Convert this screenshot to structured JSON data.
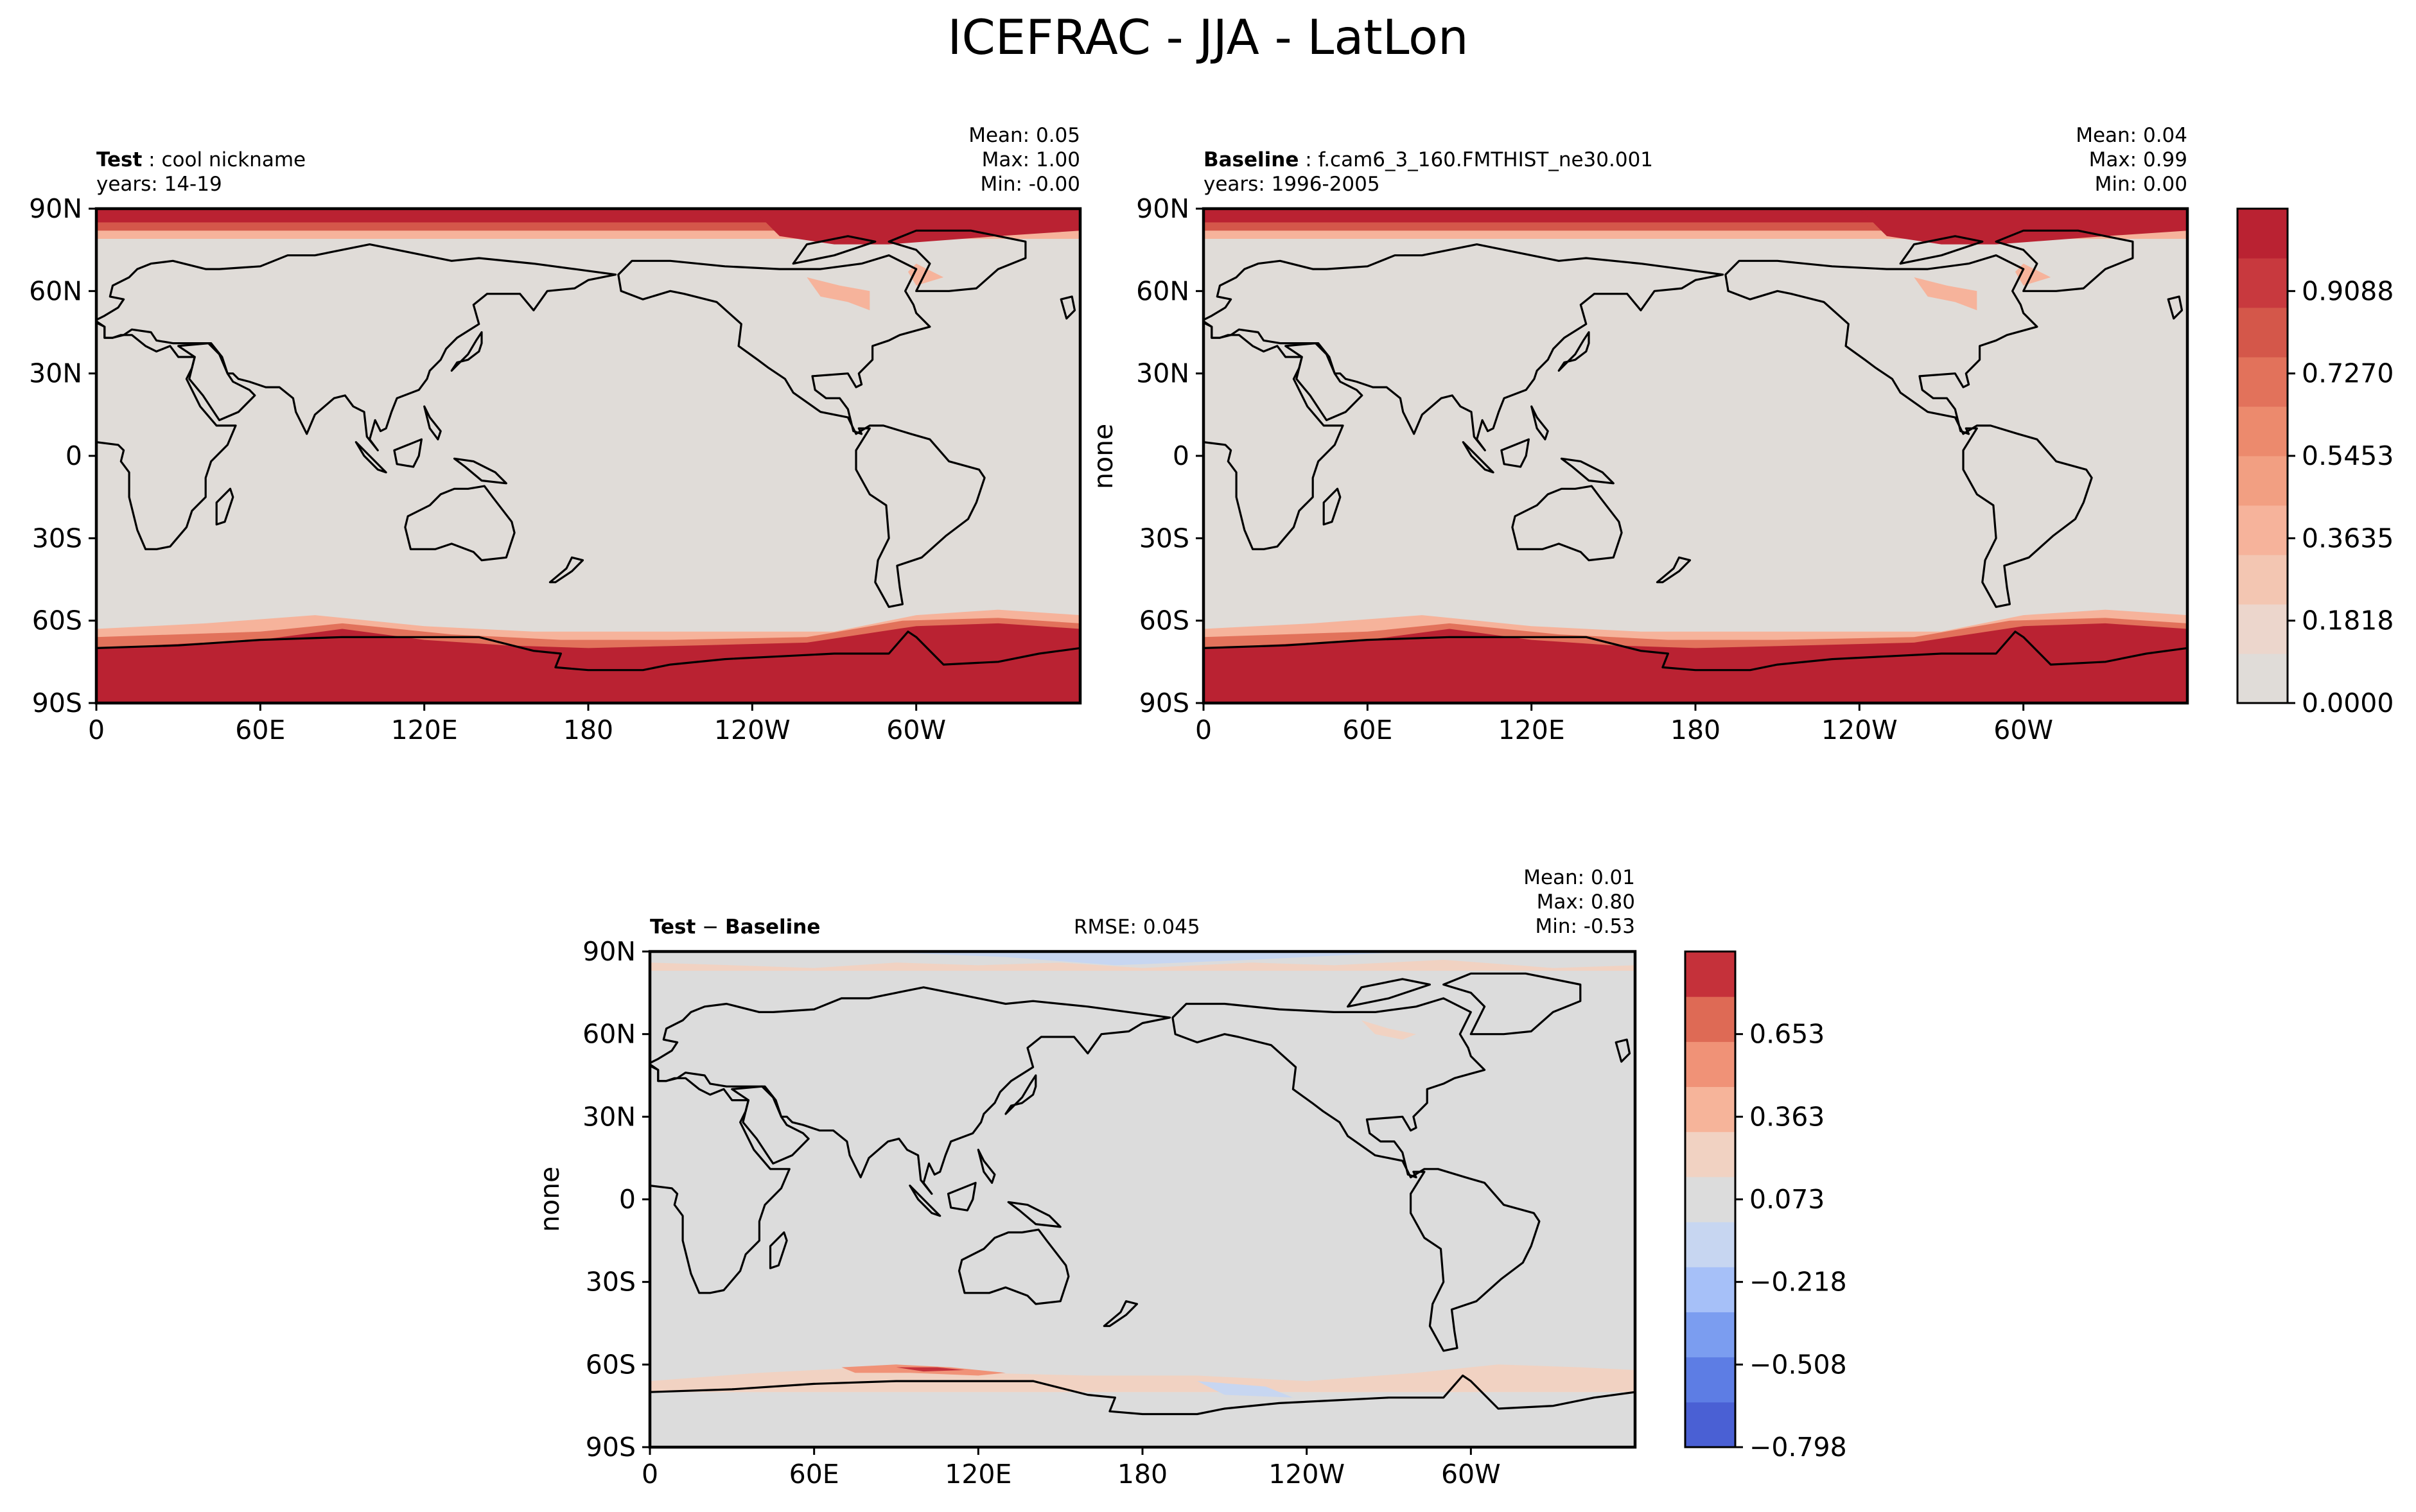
{
  "figure_title": "ICEFRAC - JJA - LatLon",
  "panels": {
    "test": {
      "case_label": "Test",
      "case_name": "cool nickname",
      "years": "years: 14-19",
      "mean": "Mean:  0.05",
      "max": "Max:  1.00",
      "min": "Min: -0.00"
    },
    "baseline": {
      "case_label": "Baseline",
      "case_name": "f.cam6_3_160.FMTHIST_ne30.001",
      "years": "years: 1996-2005",
      "ylabel": "none",
      "mean": "Mean:  0.04",
      "max": "Max:  0.99",
      "min": "Min:  0.00"
    },
    "diff": {
      "label_a": "Test",
      "minus": "−",
      "label_b": "Baseline",
      "rmse": "RMSE: 0.045",
      "ylabel": "none",
      "mean": "Mean:  0.01",
      "max": "Max:  0.80",
      "min": "Min: -0.53"
    }
  },
  "lat_ticks": [
    "90N",
    "60N",
    "30N",
    "0",
    "30S",
    "60S",
    "90S"
  ],
  "lon_ticks": [
    "0",
    "60E",
    "120E",
    "180",
    "120W",
    "60W"
  ],
  "colorbars": {
    "main": {
      "tick_labels": [
        "0.9088",
        "0.7270",
        "0.5453",
        "0.3635",
        "0.1818",
        "0.0000"
      ],
      "colors": [
        "#e0dcd8",
        "#ecd6cc",
        "#f3c6b2",
        "#f6b39b",
        "#f29f82",
        "#ec8a6d",
        "#e2725b",
        "#d4574a",
        "#c8393e",
        "#ba2232"
      ]
    },
    "diff": {
      "tick_labels": [
        "0.653",
        "0.363",
        "0.073",
        "−0.218",
        "−0.508",
        "−0.798"
      ],
      "colors": [
        "#4a60d4",
        "#5d7de4",
        "#7b9df0",
        "#a6c0f8",
        "#c7d6f1",
        "#dcdcdc",
        "#f1d2c2",
        "#f6b49a",
        "#f09277",
        "#de6a55",
        "#c5313a"
      ]
    }
  },
  "chart_data": [
    {
      "type": "heatmap",
      "title": "Test: cool nickname",
      "subtitle": "years: 14-19",
      "variable": "ICEFRAC",
      "season": "JJA",
      "projection": "LatLon",
      "ylim": [
        -90,
        90
      ],
      "xlim": [
        0,
        360
      ],
      "stats": {
        "mean": 0.05,
        "max": 1.0,
        "min": -0.0
      },
      "colorbar": {
        "min": 0.0,
        "max": 1.0,
        "levels": [
          0.0,
          0.1818,
          0.3635,
          0.5453,
          0.727,
          0.9088
        ]
      }
    },
    {
      "type": "heatmap",
      "title": "Baseline: f.cam6_3_160.FMTHIST_ne30.001",
      "subtitle": "years: 1996-2005",
      "ylabel": "none",
      "ylim": [
        -90,
        90
      ],
      "xlim": [
        0,
        360
      ],
      "stats": {
        "mean": 0.04,
        "max": 0.99,
        "min": 0.0
      },
      "colorbar": {
        "min": 0.0,
        "max": 1.0,
        "levels": [
          0.0,
          0.1818,
          0.3635,
          0.5453,
          0.727,
          0.9088
        ]
      }
    },
    {
      "type": "heatmap",
      "title": "Test − Baseline",
      "ylabel": "none",
      "ylim": [
        -90,
        90
      ],
      "xlim": [
        0,
        360
      ],
      "stats": {
        "mean": 0.01,
        "max": 0.8,
        "min": -0.53,
        "rmse": 0.045
      },
      "colorbar": {
        "min": -0.798,
        "max": 0.798,
        "levels": [
          -0.798,
          -0.508,
          -0.218,
          0.073,
          0.363,
          0.653
        ]
      }
    }
  ]
}
